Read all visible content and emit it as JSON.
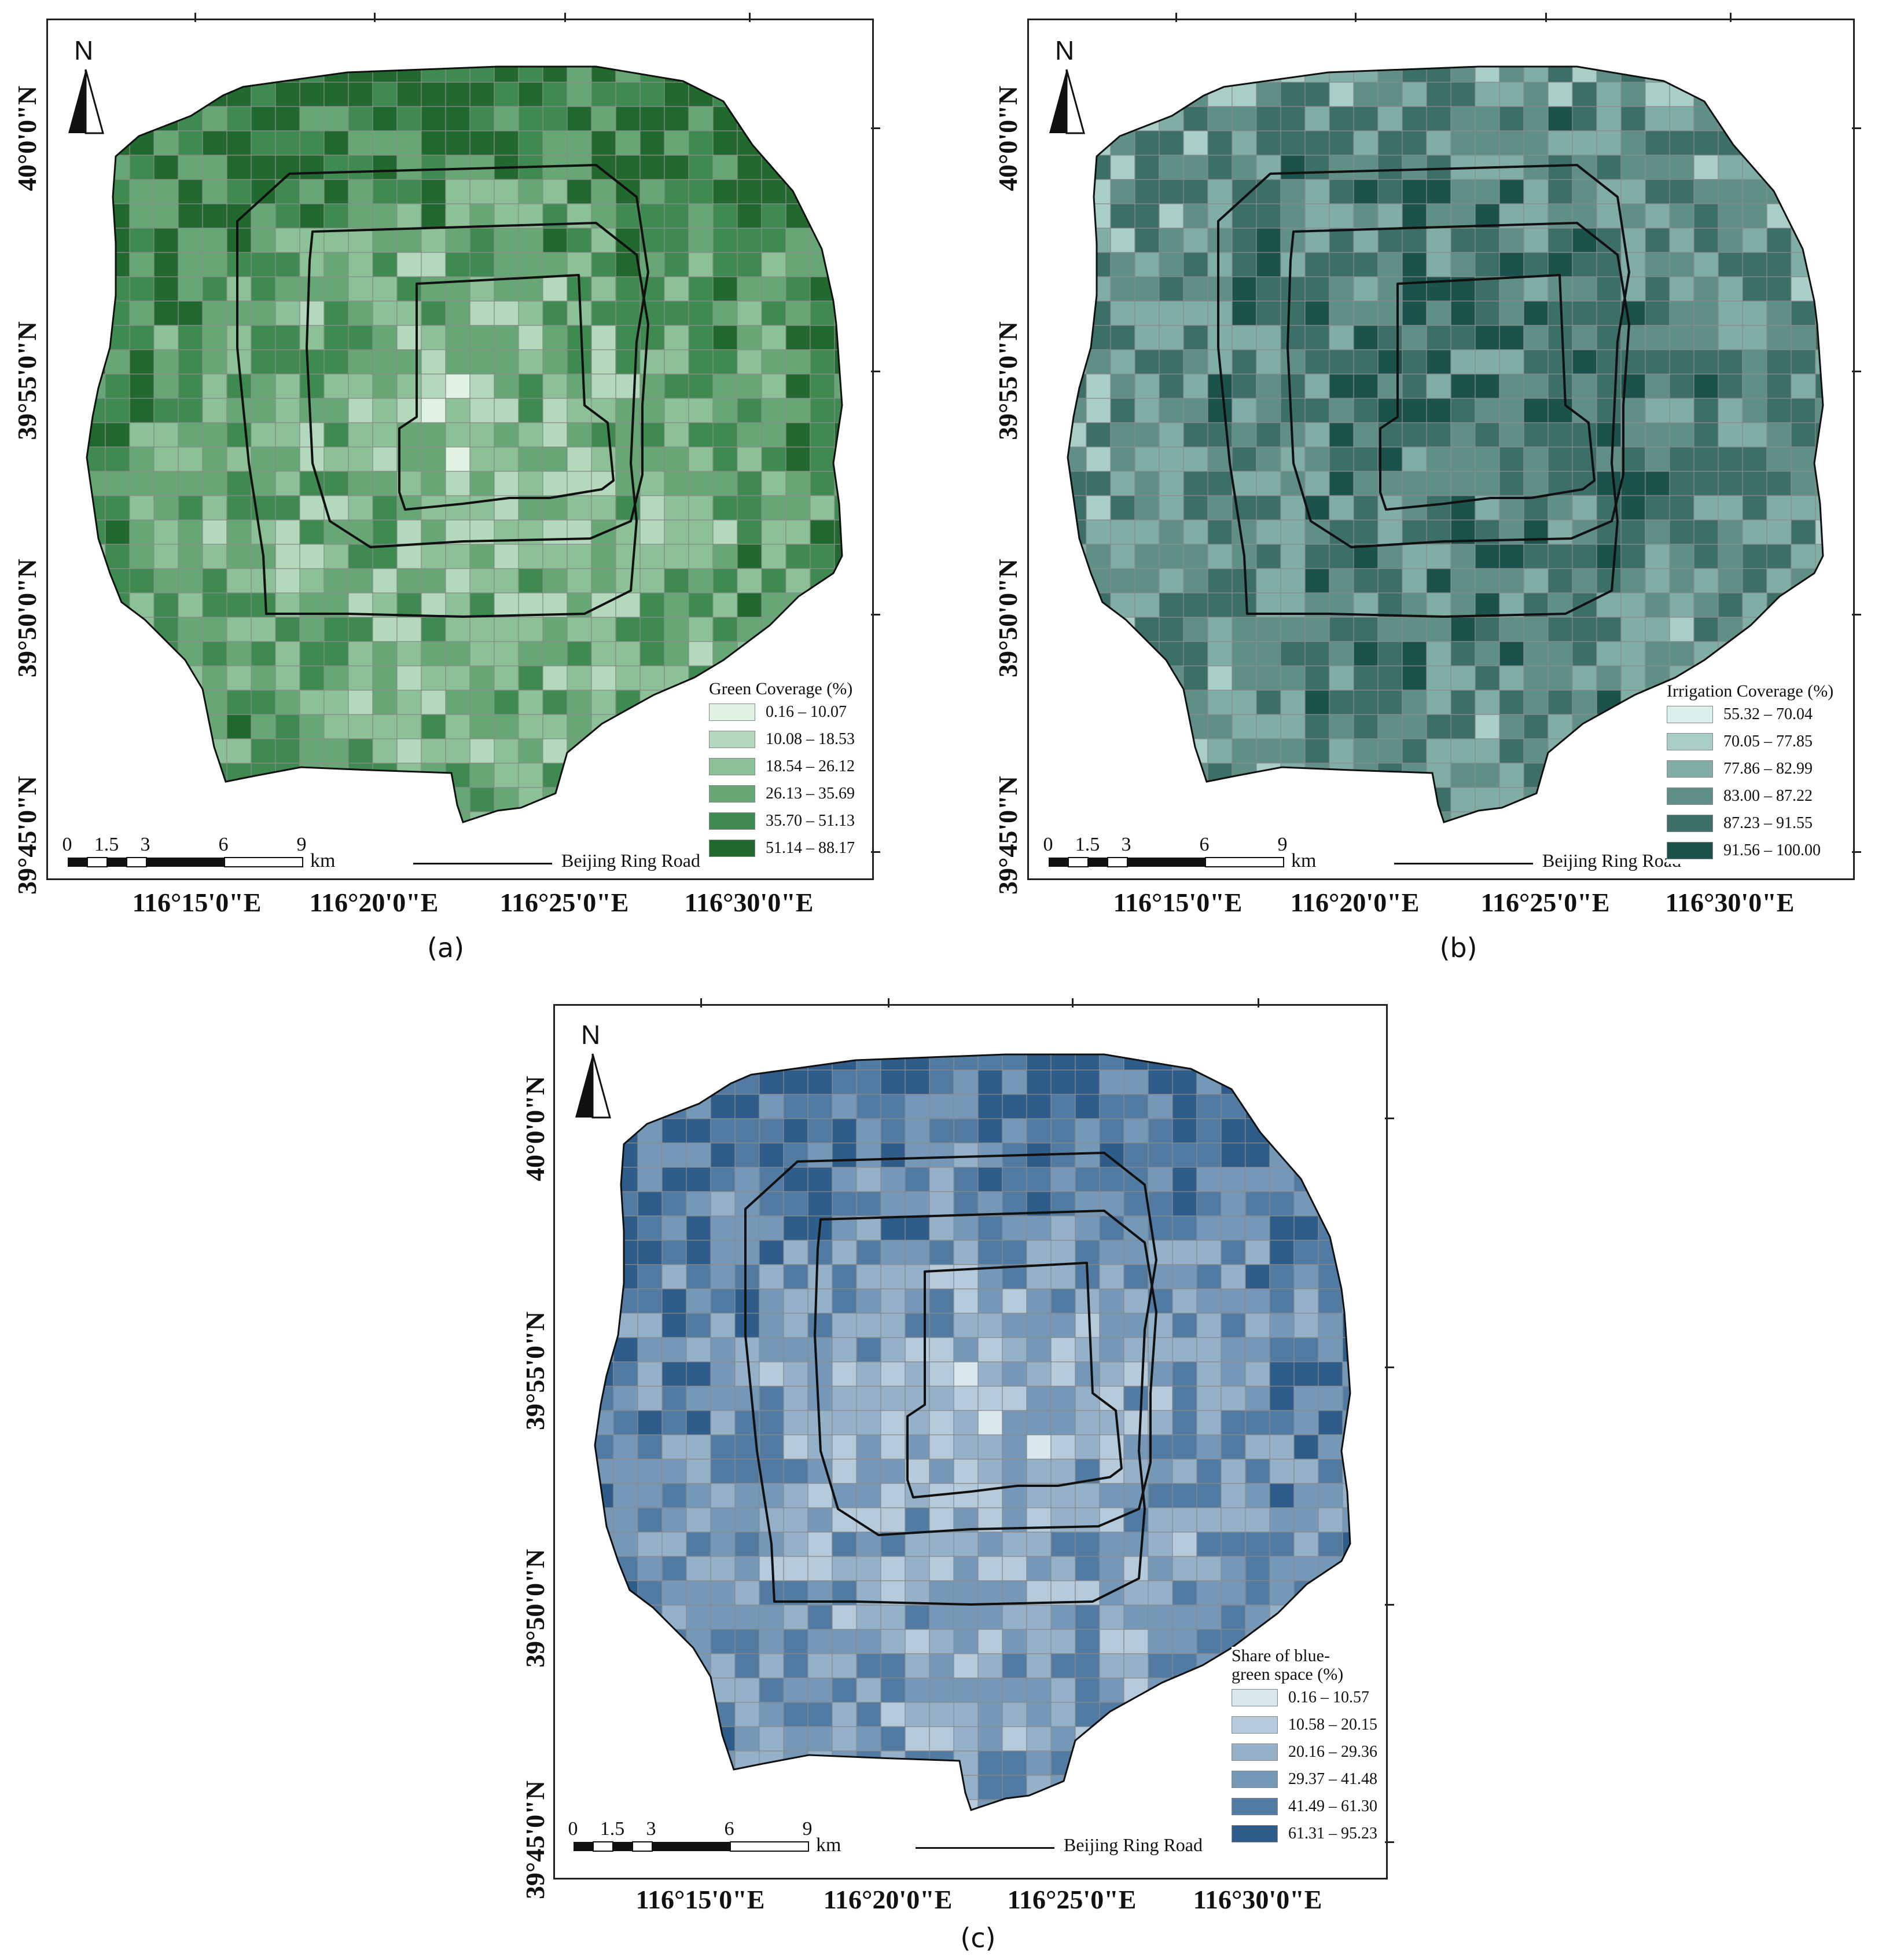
{
  "figure": {
    "x_axis_labels": [
      "116°15'0\"E",
      "116°20'0\"E",
      "116°25'0\"E",
      "116°30'0\"E"
    ],
    "y_axis_labels": [
      "40°0'0\"N",
      "39°55'0\"N",
      "39°50'0\"N",
      "39°45'0\"N"
    ],
    "north_label": "N",
    "scale_labels": [
      "0",
      "1.5",
      "3",
      "6",
      "9"
    ],
    "scale_unit": "km",
    "ring_road_label": "Beijing Ring Road",
    "boundary_color": "#111111",
    "grid_line_color": "#8a8a8a"
  },
  "panels": [
    {
      "caption": "(a)",
      "legend_title": "Green Coverage (%)",
      "classes": [
        "0.16 – 10.07",
        "10.08 – 18.53",
        "18.54 – 26.12",
        "26.13 – 35.69",
        "35.70 – 51.13",
        "51.14 – 88.17"
      ],
      "colors": [
        "#dff2e3",
        "#b3d8bb",
        "#8cc096",
        "#66a775",
        "#3f8a50",
        "#22692f"
      ]
    },
    {
      "caption": "(b)",
      "legend_title": "Irrigation Coverage (%)",
      "classes": [
        "55.32 – 70.04",
        "70.05 – 77.85",
        "77.86 – 82.99",
        "83.00 – 87.22",
        "87.23 – 91.55",
        "91.56 – 100.00"
      ],
      "colors": [
        "#dbf0ec",
        "#a9cdc7",
        "#80aea7",
        "#5f8f87",
        "#3b6f67",
        "#1b524b"
      ]
    },
    {
      "caption": "(c)",
      "legend_title": "Share of blue-\ngreen space (%)",
      "classes": [
        "0.16 – 10.57",
        "10.58 – 20.15",
        "20.16 – 29.36",
        "29.37 – 41.48",
        "41.49 – 61.30",
        "61.31 – 95.23"
      ],
      "colors": [
        "#d8e6ee",
        "#b5cadb",
        "#95b1c9",
        "#7597b8",
        "#527ba3",
        "#2e5d8b"
      ]
    }
  ]
}
